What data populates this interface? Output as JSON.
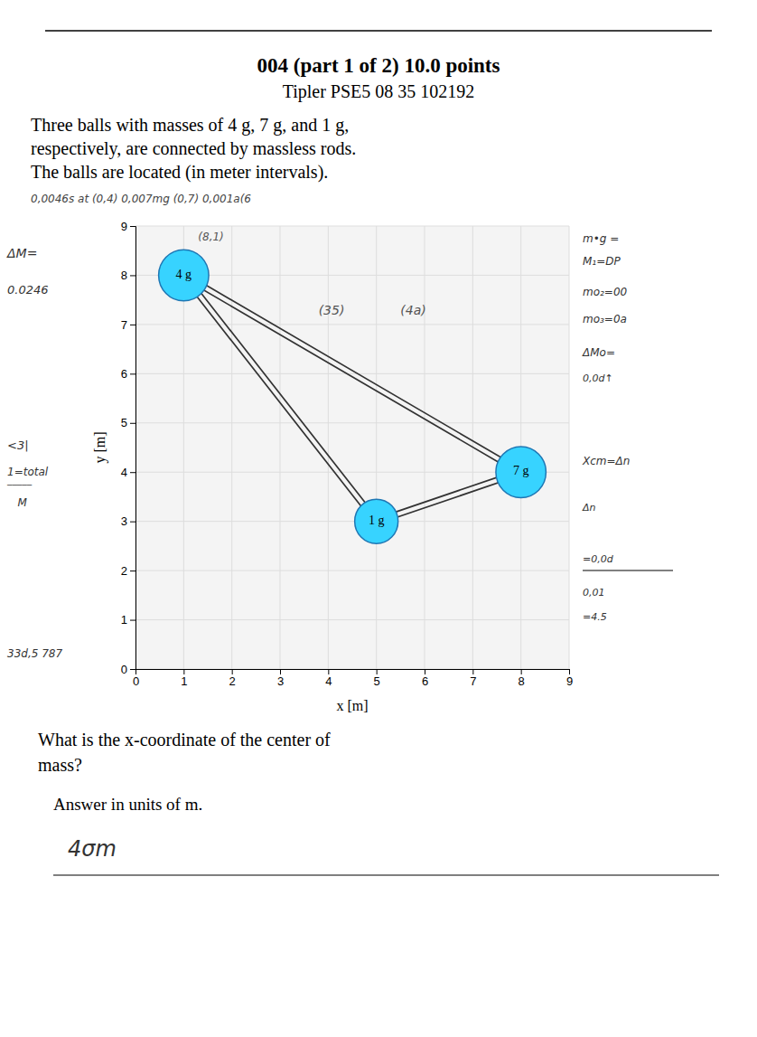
{
  "chart_data": {
    "type": "scatter",
    "title": "004 (part 1 of 2) 10.0 points",
    "subtitle": "Tipler PSE5 08 35 102192",
    "body": [
      "Three balls with masses of 4 g, 7 g, and 1 g,",
      "respectively, are connected by massless rods.",
      "The balls are located (in meter intervals)."
    ],
    "note": "0,0046s at (0,4) 0,007mg (0,7) 0,001a(6",
    "x_label": "x [m]",
    "y_label": "y [m]",
    "xlim": [
      0,
      9
    ],
    "ylim": [
      0,
      9
    ],
    "xticks": [
      0,
      1,
      2,
      3,
      4,
      5,
      6,
      7,
      8,
      9
    ],
    "yticks": [
      0,
      1,
      2,
      3,
      4,
      5,
      6,
      7,
      8,
      9
    ],
    "grid": true,
    "labels": [
      "4 g",
      "1 g",
      "7 g"
    ],
    "x": [
      1,
      5,
      8
    ],
    "values": [
      8,
      3,
      4
    ],
    "radius": [
      0.52,
      0.45,
      0.52
    ],
    "annotations": [
      {
        "text": "(8,1)",
        "x": 1.3,
        "y": 8.7
      },
      {
        "text": "(35)",
        "x": 3.8,
        "y": 7.2
      },
      {
        "text": "(4a)",
        "x": 5.5,
        "y": 7.2
      }
    ],
    "left_notes": [
      "ΔM=",
      "0.0246",
      "<3|",
      "1=total",
      "─────",
      "   M",
      "33d,5 787"
    ],
    "right_notes": [
      "m•g =",
      "M₁=DP",
      "mo₂=00",
      "mo₃=0a",
      "ΔMo=",
      "0,0d↑",
      "Xcm=Δn",
      "Δn",
      "=0,0d",
      "0,01",
      "=4.5"
    ],
    "question": [
      "What is the x-coordinate of the center of",
      "mass?"
    ],
    "answer_label": "Answer in units of m.",
    "answer": "4σm"
  }
}
